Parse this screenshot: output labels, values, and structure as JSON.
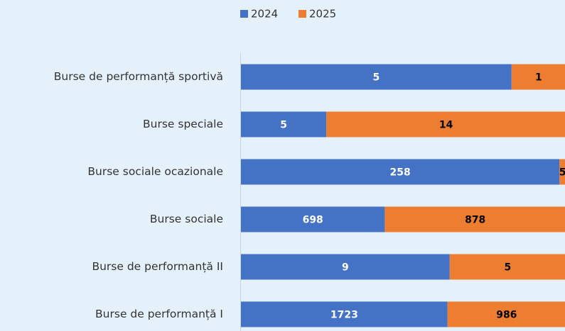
{
  "chart_data": {
    "type": "bar",
    "orientation": "horizontal",
    "stacking": "percent",
    "categories": [
      "Burse de performanță sportivă",
      "Burse speciale",
      "Burse sociale ocazionale",
      "Burse sociale",
      "Burse de performanță II",
      "Burse de performanță I"
    ],
    "series": [
      {
        "name": "2024",
        "color": "#4472c4",
        "label_color": "#ffffff",
        "values": [
          5,
          5,
          258,
          698,
          9,
          1723
        ]
      },
      {
        "name": "2025",
        "color": "#ed7d31",
        "label_color": "#000000",
        "values": [
          1,
          14,
          5,
          878,
          5,
          986
        ]
      }
    ],
    "legend": "top"
  }
}
